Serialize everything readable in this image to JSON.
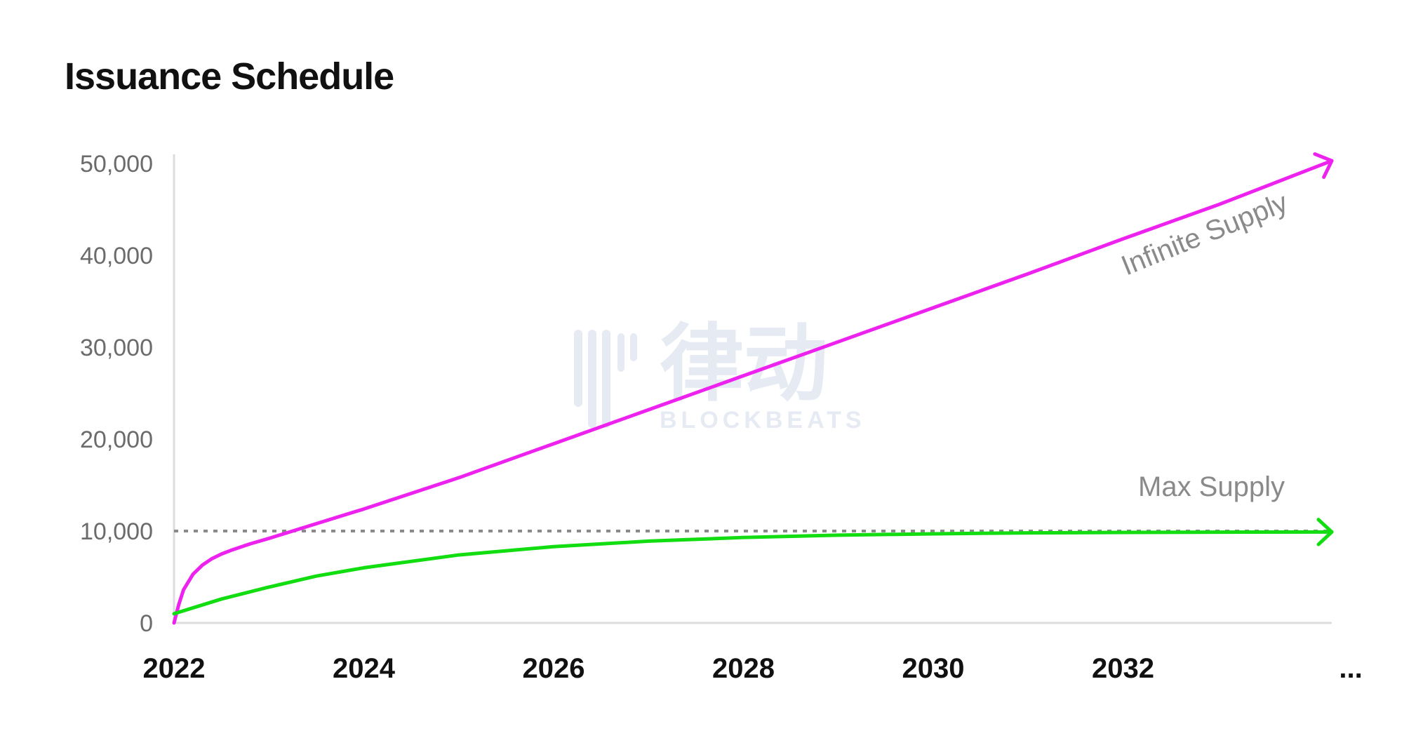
{
  "chart_data": {
    "type": "line",
    "title": "Issuance Schedule",
    "xlabel": "",
    "ylabel": "",
    "x_ticks": [
      "2022",
      "2024",
      "2026",
      "2028",
      "2030",
      "2032",
      "..."
    ],
    "x_tick_values": [
      2022,
      2024,
      2026,
      2028,
      2030,
      2032,
      2034.4
    ],
    "y_ticks": [
      "0",
      "10,000",
      "20,000",
      "30,000",
      "40,000",
      "50,000"
    ],
    "y_tick_values": [
      0,
      10000,
      20000,
      30000,
      40000,
      50000
    ],
    "xlim": [
      2022,
      2034.2
    ],
    "ylim": [
      0,
      51000
    ],
    "grid": false,
    "reference_line": {
      "y": 10000,
      "style": "dotted",
      "color": "#8a8a8a"
    },
    "series": [
      {
        "name": "Infinite Supply",
        "color": "#ee22ee",
        "arrow": true,
        "x": [
          2022.0,
          2022.05,
          2022.1,
          2022.2,
          2022.3,
          2022.4,
          2022.5,
          2022.6,
          2022.8,
          2023.0,
          2023.5,
          2024,
          2025,
          2026,
          2027,
          2028,
          2029,
          2030,
          2031,
          2032,
          2033,
          2034.2
        ],
        "y": [
          0,
          2000,
          3600,
          5300,
          6300,
          7000,
          7500,
          7900,
          8600,
          9200,
          10800,
          12400,
          15800,
          19500,
          23200,
          26900,
          30600,
          34300,
          38000,
          41800,
          45500,
          50300
        ]
      },
      {
        "name": "Max Supply",
        "color": "#11dd11",
        "arrow": true,
        "x": [
          2022.0,
          2022.5,
          2023.0,
          2023.5,
          2024,
          2025,
          2026,
          2027,
          2028,
          2029,
          2030,
          2031,
          2032,
          2033,
          2034.2
        ],
        "y": [
          1000,
          2600,
          3900,
          5100,
          6000,
          7400,
          8300,
          8900,
          9300,
          9550,
          9700,
          9800,
          9850,
          9880,
          9900
        ]
      }
    ]
  },
  "watermark": {
    "cn": "律动",
    "en": "BLOCKBEATS"
  }
}
